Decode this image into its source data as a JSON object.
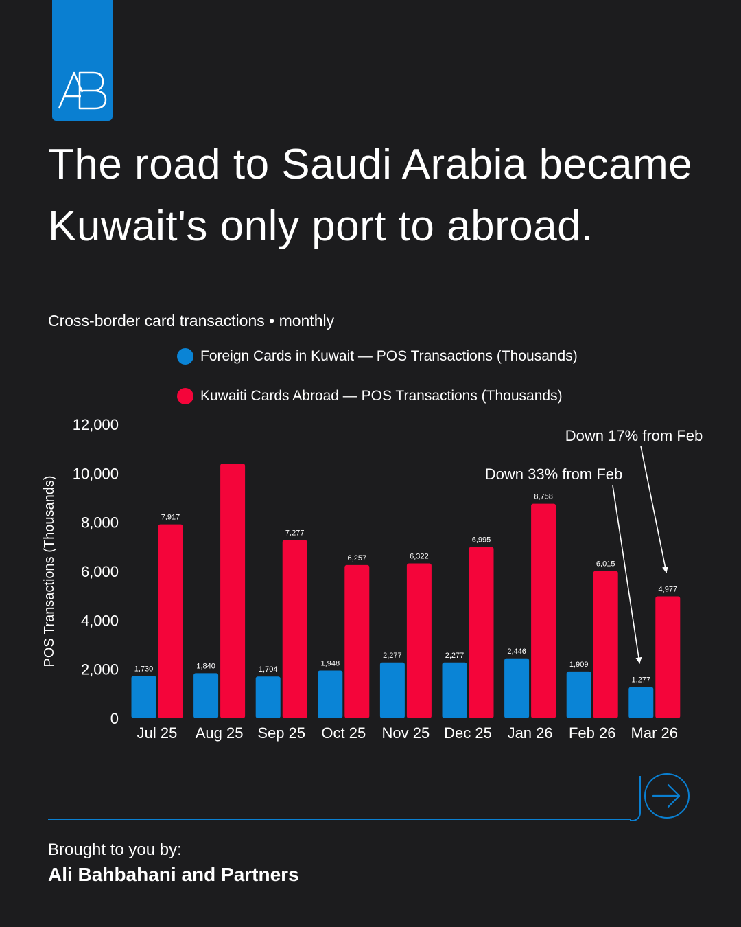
{
  "brand": {
    "logo_text": "AB",
    "accent_color": "#0a7fd1"
  },
  "headline": "The road to Saudi Arabia became Kuwait's only port to abroad.",
  "subtitle": "Cross-border card transactions • monthly",
  "chart_data": {
    "type": "bar",
    "categories": [
      "Jul 25",
      "Aug 25",
      "Sep 25",
      "Oct 25",
      "Nov 25",
      "Dec 25",
      "Jan 26",
      "Feb 26",
      "Mar 26"
    ],
    "series": [
      {
        "name": "Foreign Cards in Kuwait — POS Transactions (Thousands)",
        "color": "#0a84d6",
        "values": [
          1730,
          1840,
          1704,
          1948,
          2277,
          2277,
          2446,
          1909,
          1277
        ],
        "data_labels": [
          "1,730",
          "1,840",
          "1,704",
          "1,948",
          "2,277",
          "2,277",
          "2,446",
          "1,909",
          "1,277"
        ]
      },
      {
        "name": "Kuwaiti Cards Abroad — POS Transactions (Thousands)",
        "color": "#f4053a",
        "values": [
          7917,
          10400,
          7277,
          6257,
          6322,
          6995,
          8758,
          6015,
          4977
        ],
        "data_labels": [
          "7,917",
          "",
          "7,277",
          "6,257",
          "6,322",
          "6,995",
          "8,758",
          "6,015",
          "4,977"
        ]
      }
    ],
    "ylabel": "POS Transactions (Thousands)",
    "ylim": [
      0,
      12000
    ],
    "yticks": [
      0,
      2000,
      4000,
      6000,
      8000,
      10000,
      12000
    ],
    "ytick_labels": [
      "0",
      "2,000",
      "4,000",
      "6,000",
      "8,000",
      "10,000",
      "12,000"
    ],
    "grid": false,
    "legend_position": "top",
    "annotations": [
      {
        "text": "Down 33% from Feb",
        "series": 0,
        "category": "Mar 26"
      },
      {
        "text": "Down 17% from Feb",
        "series": 1,
        "category": "Mar 26"
      }
    ]
  },
  "footer": {
    "credit_label": "Brought to you by:",
    "credit_name": "Ali Bahbahani and Partners"
  }
}
